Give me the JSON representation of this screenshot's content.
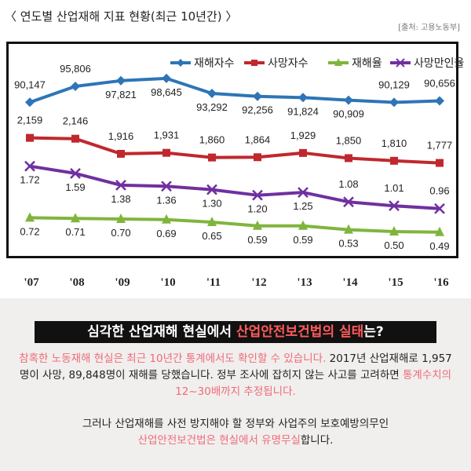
{
  "header": {
    "title": "〈 연도별 산업재해 지표 현황(최근 10년간) 〉",
    "source": "[출처: 고용노동부]"
  },
  "chart_data": {
    "type": "line",
    "categories": [
      "'07",
      "'08",
      "'09",
      "'10",
      "'11",
      "'12",
      "'13",
      "'14",
      "'15",
      "'16"
    ],
    "series": [
      {
        "name": "재해자수",
        "color": "#2e75b6",
        "values": [
          90147,
          95806,
          97821,
          98645,
          93292,
          92256,
          91824,
          90909,
          90129,
          90656
        ],
        "labels": [
          "90,147",
          "95,806",
          "97,821",
          "98,645",
          "93,292",
          "92,256",
          "91,824",
          "90,909",
          "90,129",
          "90,656"
        ]
      },
      {
        "name": "사망자수",
        "color": "#c0282d",
        "values": [
          2159,
          2146,
          1916,
          1931,
          1860,
          1864,
          1929,
          1850,
          1810,
          1777
        ],
        "labels": [
          "2,159",
          "2,146",
          "1,916",
          "1,931",
          "1,860",
          "1,864",
          "1,929",
          "1,850",
          "1,810",
          "1,777"
        ]
      },
      {
        "name": "재해율",
        "color": "#7fb53d",
        "values": [
          0.72,
          0.71,
          0.7,
          0.69,
          0.65,
          0.59,
          0.59,
          0.53,
          0.5,
          0.49
        ],
        "labels": [
          "0.72",
          "0.71",
          "0.70",
          "0.69",
          "0.65",
          "0.59",
          "0.59",
          "0.53",
          "0.50",
          "0.49"
        ]
      },
      {
        "name": "사망만인율",
        "color": "#7030a0",
        "values": [
          1.72,
          1.59,
          1.38,
          1.36,
          1.3,
          1.2,
          1.25,
          1.08,
          1.01,
          0.96
        ],
        "labels": [
          "1.72",
          "1.59",
          "1.38",
          "1.36",
          "1.30",
          "1.20",
          "1.25",
          "1.08",
          "1.01",
          "0.96"
        ]
      }
    ],
    "grid": false,
    "legend": "top-right"
  },
  "body": {
    "headline_a": "심각한 산업재해 현실에서 ",
    "headline_b": "산업안전보건법의 실태",
    "headline_c": "는?",
    "p1_a": "참혹한 노동재해 현실은 최근 10년간 통계에서도 확인할 수 있습니다.",
    "p1_b": " 2017년 산업재해로 1,957명이 사망, 89,848명이 재해를 당했습니다. 정부 조사에 잡히지 않는 사고를 고려하면 ",
    "p1_c": "통계수치의 12~30배까지 추정됩니다.",
    "p2_a": "그러나 산업재해를 사전 방지해야 할 정부와 사업주의 보호예방의무인 ",
    "p2_b": "산업안전보건법은 현실에서 유명무실",
    "p2_c": "합니다."
  }
}
